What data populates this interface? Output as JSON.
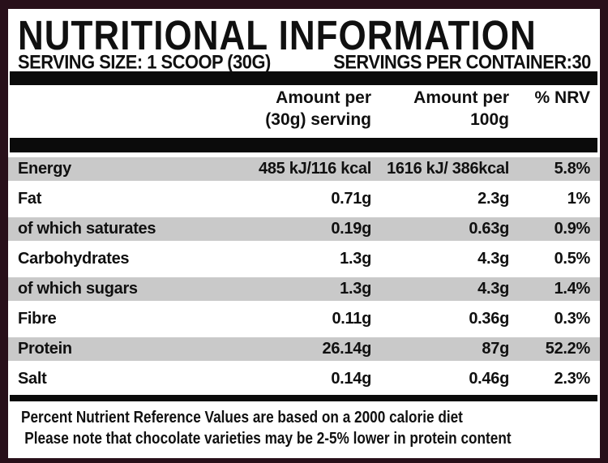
{
  "title": "NUTRITIONAL INFORMATION",
  "serving": {
    "size_label": "SERVING SIZE: 1 SCOOP (30G)",
    "per_container_label": "SERVINGS PER CONTAINER:30"
  },
  "table": {
    "headers": {
      "per_serving_line1": "Amount per",
      "per_serving_line2": "(30g) serving",
      "per_100g_line1": "Amount per",
      "per_100g_line2": "100g",
      "nrv": "% NRV"
    },
    "rows": [
      {
        "label": "Energy",
        "per_serving": "485 kJ/116 kcal",
        "per_100g": "1616 kJ/ 386kcal",
        "nrv": "5.8%",
        "shaded": true
      },
      {
        "label": "Fat",
        "per_serving": "0.71g",
        "per_100g": "2.3g",
        "nrv": "1%",
        "shaded": false
      },
      {
        "label": "of which saturates",
        "per_serving": "0.19g",
        "per_100g": "0.63g",
        "nrv": "0.9%",
        "shaded": true
      },
      {
        "label": "Carbohydrates",
        "per_serving": "1.3g",
        "per_100g": "4.3g",
        "nrv": "0.5%",
        "shaded": false
      },
      {
        "label": "of which sugars",
        "per_serving": "1.3g",
        "per_100g": "4.3g",
        "nrv": "1.4%",
        "shaded": true
      },
      {
        "label": "Fibre",
        "per_serving": "0.11g",
        "per_100g": "0.36g",
        "nrv": "0.3%",
        "shaded": false
      },
      {
        "label": "Protein",
        "per_serving": "26.14g",
        "per_100g": "87g",
        "nrv": "52.2%",
        "shaded": true
      },
      {
        "label": "Salt",
        "per_serving": "0.14g",
        "per_100g": "0.46g",
        "nrv": "2.3%",
        "shaded": false
      }
    ]
  },
  "footnotes": [
    "Percent Nutrient Reference Values are based on a 2000 calorie diet",
    "Please note that chocolate varieties may be 2-5% lower in protein content"
  ],
  "colors": {
    "border": "#28101a",
    "bar": "#0b0b0b",
    "shaded_row": "#c9c9c9",
    "text": "#101010"
  }
}
